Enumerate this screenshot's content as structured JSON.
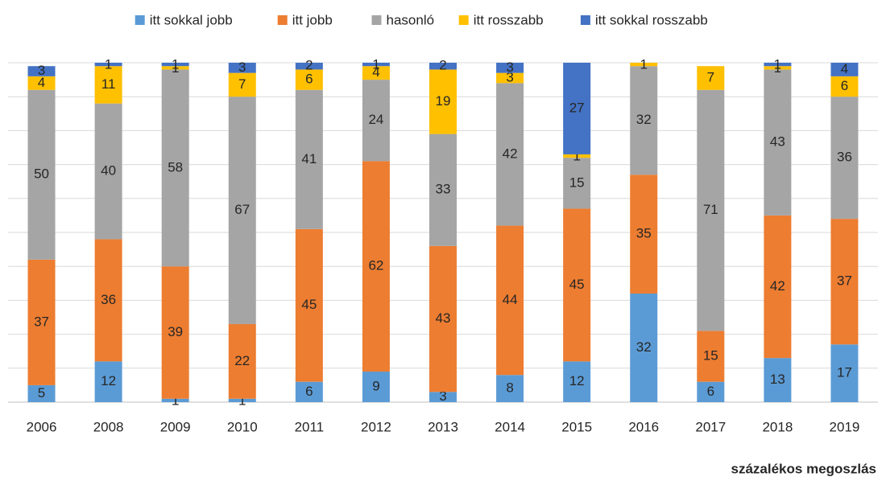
{
  "chart_data": {
    "type": "stacked_bar",
    "categories": [
      "2006",
      "2008",
      "2009",
      "2010",
      "2011",
      "2012",
      "2013",
      "2014",
      "2015",
      "2016",
      "2017",
      "2018",
      "2019"
    ],
    "series": [
      {
        "name": "itt sokkal jobb",
        "color": "#5b9bd5",
        "values": [
          5,
          12,
          1,
          1,
          6,
          9,
          3,
          8,
          12,
          32,
          6,
          13,
          17
        ]
      },
      {
        "name": "itt jobb",
        "color": "#ed7d31",
        "values": [
          37,
          36,
          39,
          22,
          45,
          62,
          43,
          44,
          45,
          35,
          15,
          42,
          37
        ]
      },
      {
        "name": "hasonló",
        "color": "#a5a5a5",
        "values": [
          50,
          40,
          58,
          67,
          41,
          24,
          33,
          42,
          15,
          32,
          71,
          43,
          36
        ]
      },
      {
        "name": "itt rosszabb",
        "color": "#ffc000",
        "values": [
          4,
          11,
          1,
          7,
          6,
          4,
          19,
          3,
          1,
          1,
          7,
          1,
          6
        ]
      },
      {
        "name": "itt sokkal rosszabb",
        "color": "#4472c4",
        "values": [
          3,
          1,
          1,
          3,
          2,
          1,
          2,
          3,
          27,
          null,
          null,
          1,
          4
        ]
      }
    ],
    "ylim": [
      0,
      100
    ],
    "yticks": [
      0,
      10,
      20,
      30,
      40,
      50,
      60,
      70,
      80,
      90,
      100
    ],
    "grid": true,
    "note": "százalékos megoszlás"
  }
}
